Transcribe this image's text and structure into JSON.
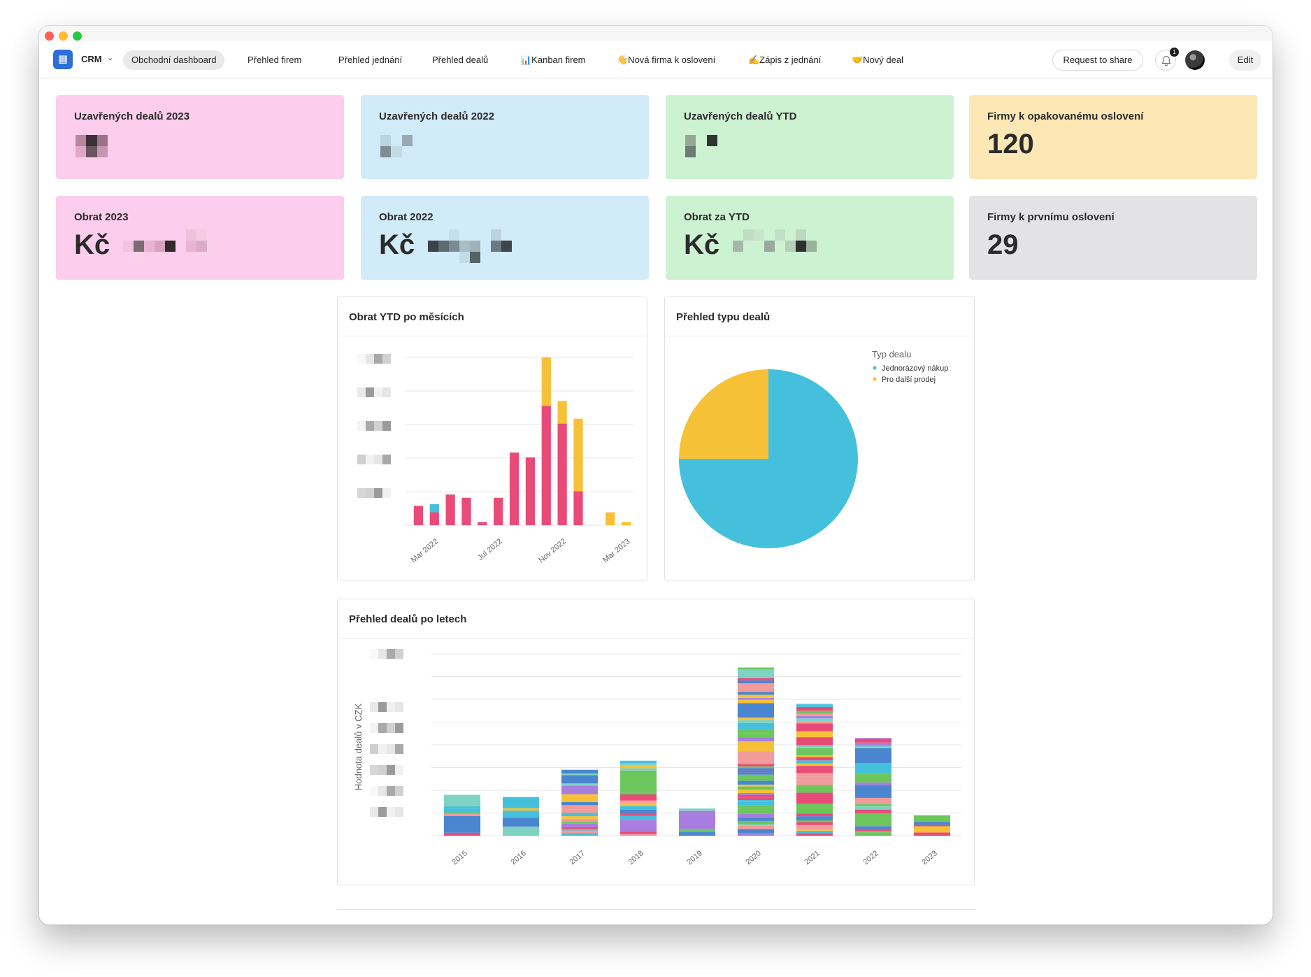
{
  "toolbar": {
    "app_icon": "board-icon",
    "app_label": "CRM",
    "nav": [
      {
        "label": "Obchodní dashboard",
        "active": true
      },
      {
        "label": "Přehled firem"
      },
      {
        "label": "Přehled jednání"
      },
      {
        "label": "Přehled dealů"
      },
      {
        "label": "📊Kanban firem"
      },
      {
        "label": "👋Nová firma k oslovení"
      },
      {
        "label": "✍️Zápis z jednání"
      },
      {
        "label": "🤝Nový deal"
      }
    ],
    "share_label": "Request to share",
    "notification_count": "1",
    "edit_label": "Edit"
  },
  "cards": [
    {
      "title": "Uzavřených dealů 2023",
      "value": "",
      "color": "#fccdec"
    },
    {
      "title": "Uzavřených dealů 2022",
      "value": "",
      "color": "#d1ebf8"
    },
    {
      "title": "Uzavřených dealů YTD",
      "value": "",
      "color": "#cdf2d2"
    },
    {
      "title": "Firmy k opakovanému oslovení",
      "value": "120",
      "color": "#fde8b5"
    },
    {
      "title": "Obrat 2023",
      "value": "Kč",
      "color": "#fccdec"
    },
    {
      "title": "Obrat 2022",
      "value": "Kč",
      "color": "#d1ebf8"
    },
    {
      "title": "Obrat za YTD",
      "value": "Kč",
      "color": "#cdf2d2"
    },
    {
      "title": "Firmy k prvnímu oslovení",
      "value": "29",
      "color": "#e3e3e6"
    }
  ],
  "panels": {
    "monthly": {
      "title": "Obrat YTD po měsících"
    },
    "types": {
      "title": "Přehled typu dealů"
    },
    "yearly": {
      "title": "Přehled dealů po letech"
    }
  },
  "chart_data": [
    {
      "type": "bar",
      "stacked": true,
      "title": "Obrat YTD po měsících",
      "categories": [
        "Feb 2022",
        "Mar 2022",
        "Apr 2022",
        "May 2022",
        "Jun 2022",
        "Jul 2022",
        "Aug 2022",
        "Sep 2022",
        "Oct 2022",
        "Nov 2022",
        "Dec 2022",
        "Jan 2023",
        "Feb 2023",
        "Mar 2023"
      ],
      "x_tick_labels": [
        "Mar 2022",
        "Jul 2022",
        "Nov 2022",
        "Mar 2023"
      ],
      "series": [
        {
          "color": "#e94b78",
          "values": [
            12,
            8,
            19,
            17,
            2,
            17,
            45,
            42,
            74,
            63,
            21,
            0,
            0,
            0
          ]
        },
        {
          "color": "#45c0dc",
          "values": [
            0,
            5,
            0,
            0,
            0,
            0,
            0,
            0,
            0,
            0,
            0,
            0,
            0,
            0
          ]
        },
        {
          "color": "#f7c137",
          "values": [
            0,
            0,
            0,
            0,
            0,
            0,
            0,
            0,
            30,
            14,
            45,
            0,
            8,
            2
          ]
        }
      ],
      "ylim": [
        0,
        104
      ],
      "grid": true
    },
    {
      "type": "pie",
      "title": "Přehled typu dealů",
      "legend_title": "Typ dealu",
      "legend_position": "top-right",
      "slices": [
        {
          "label": "Jednorázový nákup",
          "value": 75,
          "color": "#45c0dc"
        },
        {
          "label": "Pro další prodej",
          "value": 25,
          "color": "#f7c137"
        }
      ]
    },
    {
      "type": "bar",
      "stacked": true,
      "title": "Přehled dealů po letech",
      "ylabel": "Hodnota dealů v CZK",
      "categories": [
        "2015",
        "2016",
        "2017",
        "2018",
        "2019",
        "2020",
        "2021",
        "2022",
        "2023"
      ],
      "totals": [
        18,
        17,
        29,
        33,
        12,
        74,
        58,
        43,
        9
      ],
      "ylim": [
        0,
        80
      ],
      "grid": true,
      "palette": [
        "#e94b78",
        "#45c0dc",
        "#f7c137",
        "#6cc65c",
        "#4a86d0",
        "#a77de0",
        "#f29b9b",
        "#7fd3c2"
      ]
    }
  ]
}
